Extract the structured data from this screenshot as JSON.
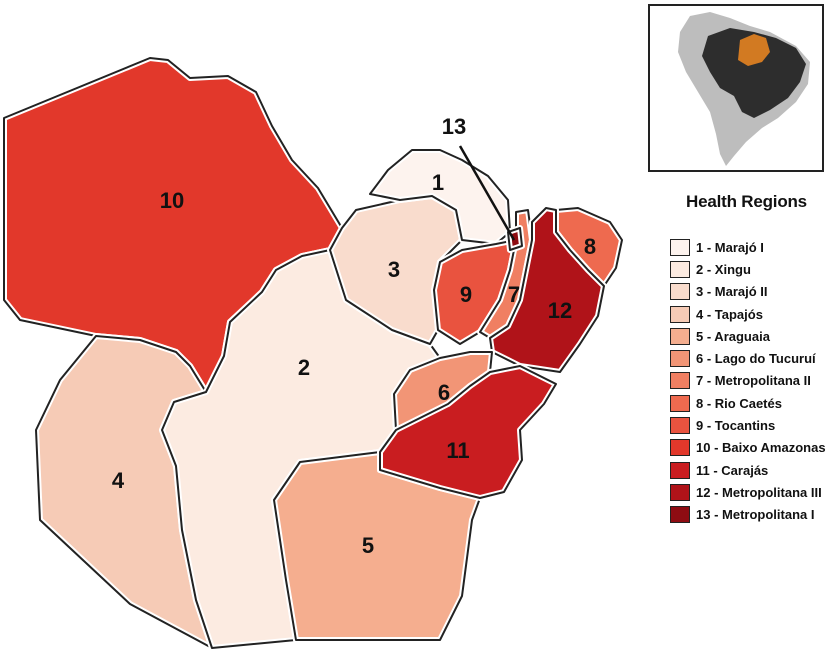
{
  "legend": {
    "title": "Health Regions",
    "items": [
      {
        "num": "1",
        "label": "1 - Marajó I",
        "color": "#fdf3ee"
      },
      {
        "num": "2",
        "label": "2 - Xingu",
        "color": "#fcebe1"
      },
      {
        "num": "3",
        "label": "3 - Marajó II",
        "color": "#f9dccd"
      },
      {
        "num": "4",
        "label": "4 - Tapajós",
        "color": "#f6cbb6"
      },
      {
        "num": "5",
        "label": "5 - Araguaia",
        "color": "#f5ae8f"
      },
      {
        "num": "6",
        "label": "6 - Lago do Tucuruí",
        "color": "#f29576"
      },
      {
        "num": "7",
        "label": "7 - Metropolitana II",
        "color": "#f07f62"
      },
      {
        "num": "8",
        "label": "8 - Rio Caetés",
        "color": "#ee6a4f"
      },
      {
        "num": "9",
        "label": "9 - Tocantins",
        "color": "#e9533f"
      },
      {
        "num": "10",
        "label": "10 - Baixo Amazonas",
        "color": "#e2382b"
      },
      {
        "num": "11",
        "label": "11 - Carajás",
        "color": "#c91d20"
      },
      {
        "num": "12",
        "label": "12 - Metropolitana III",
        "color": "#b01319"
      },
      {
        "num": "13",
        "label": "13 - Metropolitana I",
        "color": "#8e0c12"
      }
    ]
  },
  "inset": {
    "continent_color": "#bdbdbd",
    "brazil_color": "#2d2d2d",
    "highlight_state": "Pará",
    "highlight_color": "#d27a22"
  }
}
